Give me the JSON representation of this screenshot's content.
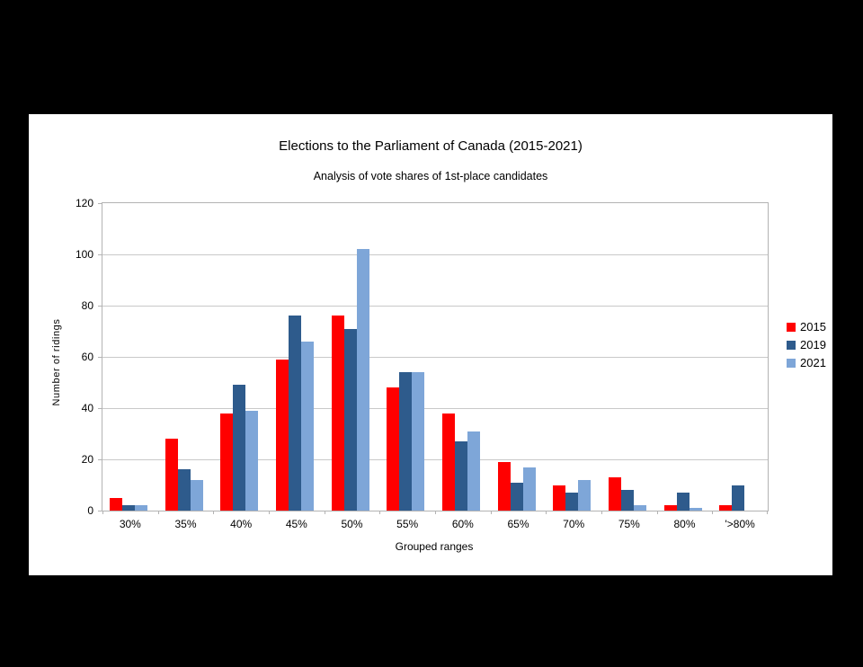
{
  "page": {
    "background_color": "#000000",
    "canvas_color": "#ffffff",
    "gridline_color": "#c9c9c9",
    "axis_color": "#b3b3b3"
  },
  "chart_data": {
    "type": "bar",
    "title": "Elections to the Parliament of Canada (2015-2021)",
    "subtitle": "Analysis of vote shares of 1st-place candidates",
    "xlabel": "Grouped ranges",
    "ylabel": "Number of ridings",
    "ylim": [
      0,
      120
    ],
    "yticks": [
      0,
      20,
      40,
      60,
      80,
      100,
      120
    ],
    "grid": true,
    "legend_position": "right",
    "categories": [
      "30%",
      "35%",
      "40%",
      "45%",
      "50%",
      "55%",
      "60%",
      "65%",
      "70%",
      "75%",
      "80%",
      "'>80%"
    ],
    "series": [
      {
        "name": "2015",
        "color": "#ff0000",
        "values": [
          5,
          28,
          38,
          59,
          76,
          48,
          38,
          19,
          10,
          13,
          2,
          2
        ]
      },
      {
        "name": "2019",
        "color": "#2e5b8c",
        "values": [
          2,
          16,
          49,
          76,
          71,
          54,
          27,
          11,
          7,
          8,
          7,
          10
        ]
      },
      {
        "name": "2021",
        "color": "#7ea6d8",
        "values": [
          2,
          12,
          39,
          66,
          102,
          54,
          31,
          17,
          12,
          2,
          1,
          0
        ]
      }
    ]
  }
}
